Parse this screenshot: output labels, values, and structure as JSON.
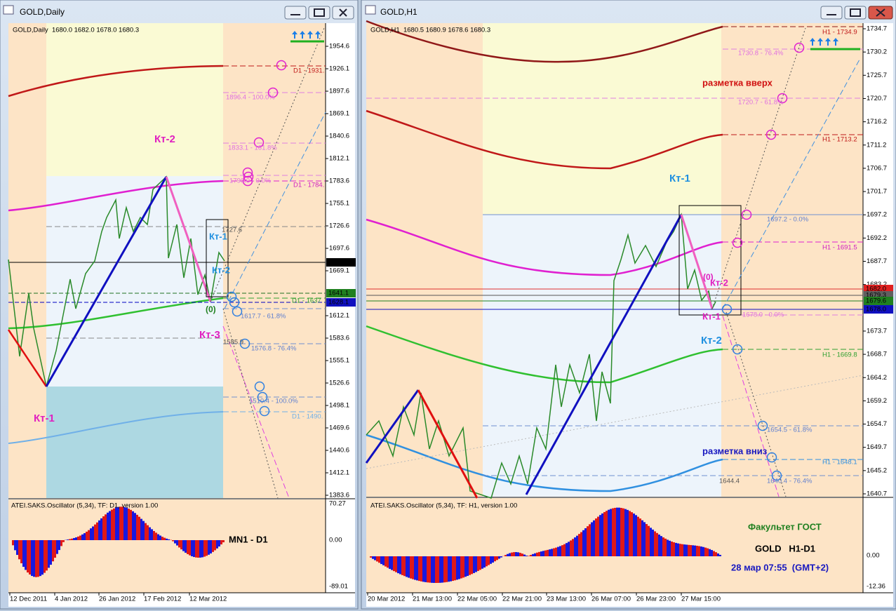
{
  "windows": [
    {
      "title": "GOLD,Daily",
      "info": "GOLD,Daily  1680.0 1682.0 1678.0 1680.3",
      "price_ticks": [
        "1954.6",
        "1926.1",
        "1897.6",
        "1869.1",
        "1840.6",
        "1812.1",
        "1783.6",
        "1755.1",
        "1726.6",
        "1697.6",
        "1669.1",
        "1612.1",
        "1583.6",
        "1555.1",
        "1526.6",
        "1498.1",
        "1469.6",
        "1440.6",
        "1412.1",
        "1383.6"
      ],
      "price_markers": [
        "1680.3",
        "1641.1",
        "1628.1"
      ],
      "osc_ticks": [
        "70.27",
        "0.00",
        "-89.01"
      ],
      "time_ticks": [
        "12 Dec 2011",
        "4 Jan 2012",
        "26 Jan 2012",
        "17 Feb 2012",
        "12 Mar 2012"
      ],
      "osc_title": "ATEI.SAKS.Oscillator (5,34), TF: D1, version 1.00",
      "annotations": [
        "Кт-2",
        "Кт-1",
        "Кт-2",
        "(0)",
        "Кт-3",
        "Кт-1",
        "1727.6",
        "1896.4 - 100.0%",
        "1833.1 - 161.8%",
        "1790.0 - 0.0%",
        "1617.7 - 61.8%",
        "1585.9",
        "1576.8 - 76.4%",
        "1510.4 - 100.0%",
        "D1 - 1931.",
        "D1 - 1784.",
        "D1 - 1637",
        "D1 - 1490.",
        "MN1 - D1"
      ]
    },
    {
      "title": "GOLD,H1",
      "info": "GOLD,H1  1680.5 1680.9 1678.6 1680.3",
      "price_ticks": [
        "1734.7",
        "1730.2",
        "1725.7",
        "1720.7",
        "1716.2",
        "1711.2",
        "1706.7",
        "1701.7",
        "1697.2",
        "1692.2",
        "1687.7",
        "1683.2",
        "1673.7",
        "1668.7",
        "1664.2",
        "1659.2",
        "1654.7",
        "1649.7",
        "1645.2",
        "1640.7"
      ],
      "price_markers": [
        "1682.0",
        "1679.3",
        "1679.6",
        "1678.0"
      ],
      "osc_ticks": [
        "0.00",
        "-12.36"
      ],
      "time_ticks": [
        "20 Mar 2012",
        "21 Mar 13:00",
        "22 Mar 05:00",
        "22 Mar 21:00",
        "23 Mar 13:00",
        "26 Mar 07:00",
        "26 Mar 23:00",
        "27 Mar 15:00"
      ],
      "osc_title": "ATEI.SAKS.Oscillator (5,34), TF: H1, version 1.00",
      "annotations": [
        "разметка вверх",
        "Кт-1",
        "(0)",
        "Кт-2",
        "Кт-1",
        "Кт-2",
        "разметка вниз",
        "H1 - 1734.9",
        "1730.8 - 76.4%",
        "1720.7 - 61.8%",
        "H1 - 1713.2",
        "1697.2 - 0.0%",
        "H1 - 1691.5",
        "1678.0 - 0.0%",
        "H1 - 1669.8",
        "1654.5 - 61.8%",
        "H1 - 1648.1",
        "1644.4",
        "1640.4 - 76.4%",
        "Факультет ГОСТ",
        "GOLD   H1-D1",
        "28 мар 07:55  (GMT+2)"
      ]
    }
  ]
}
